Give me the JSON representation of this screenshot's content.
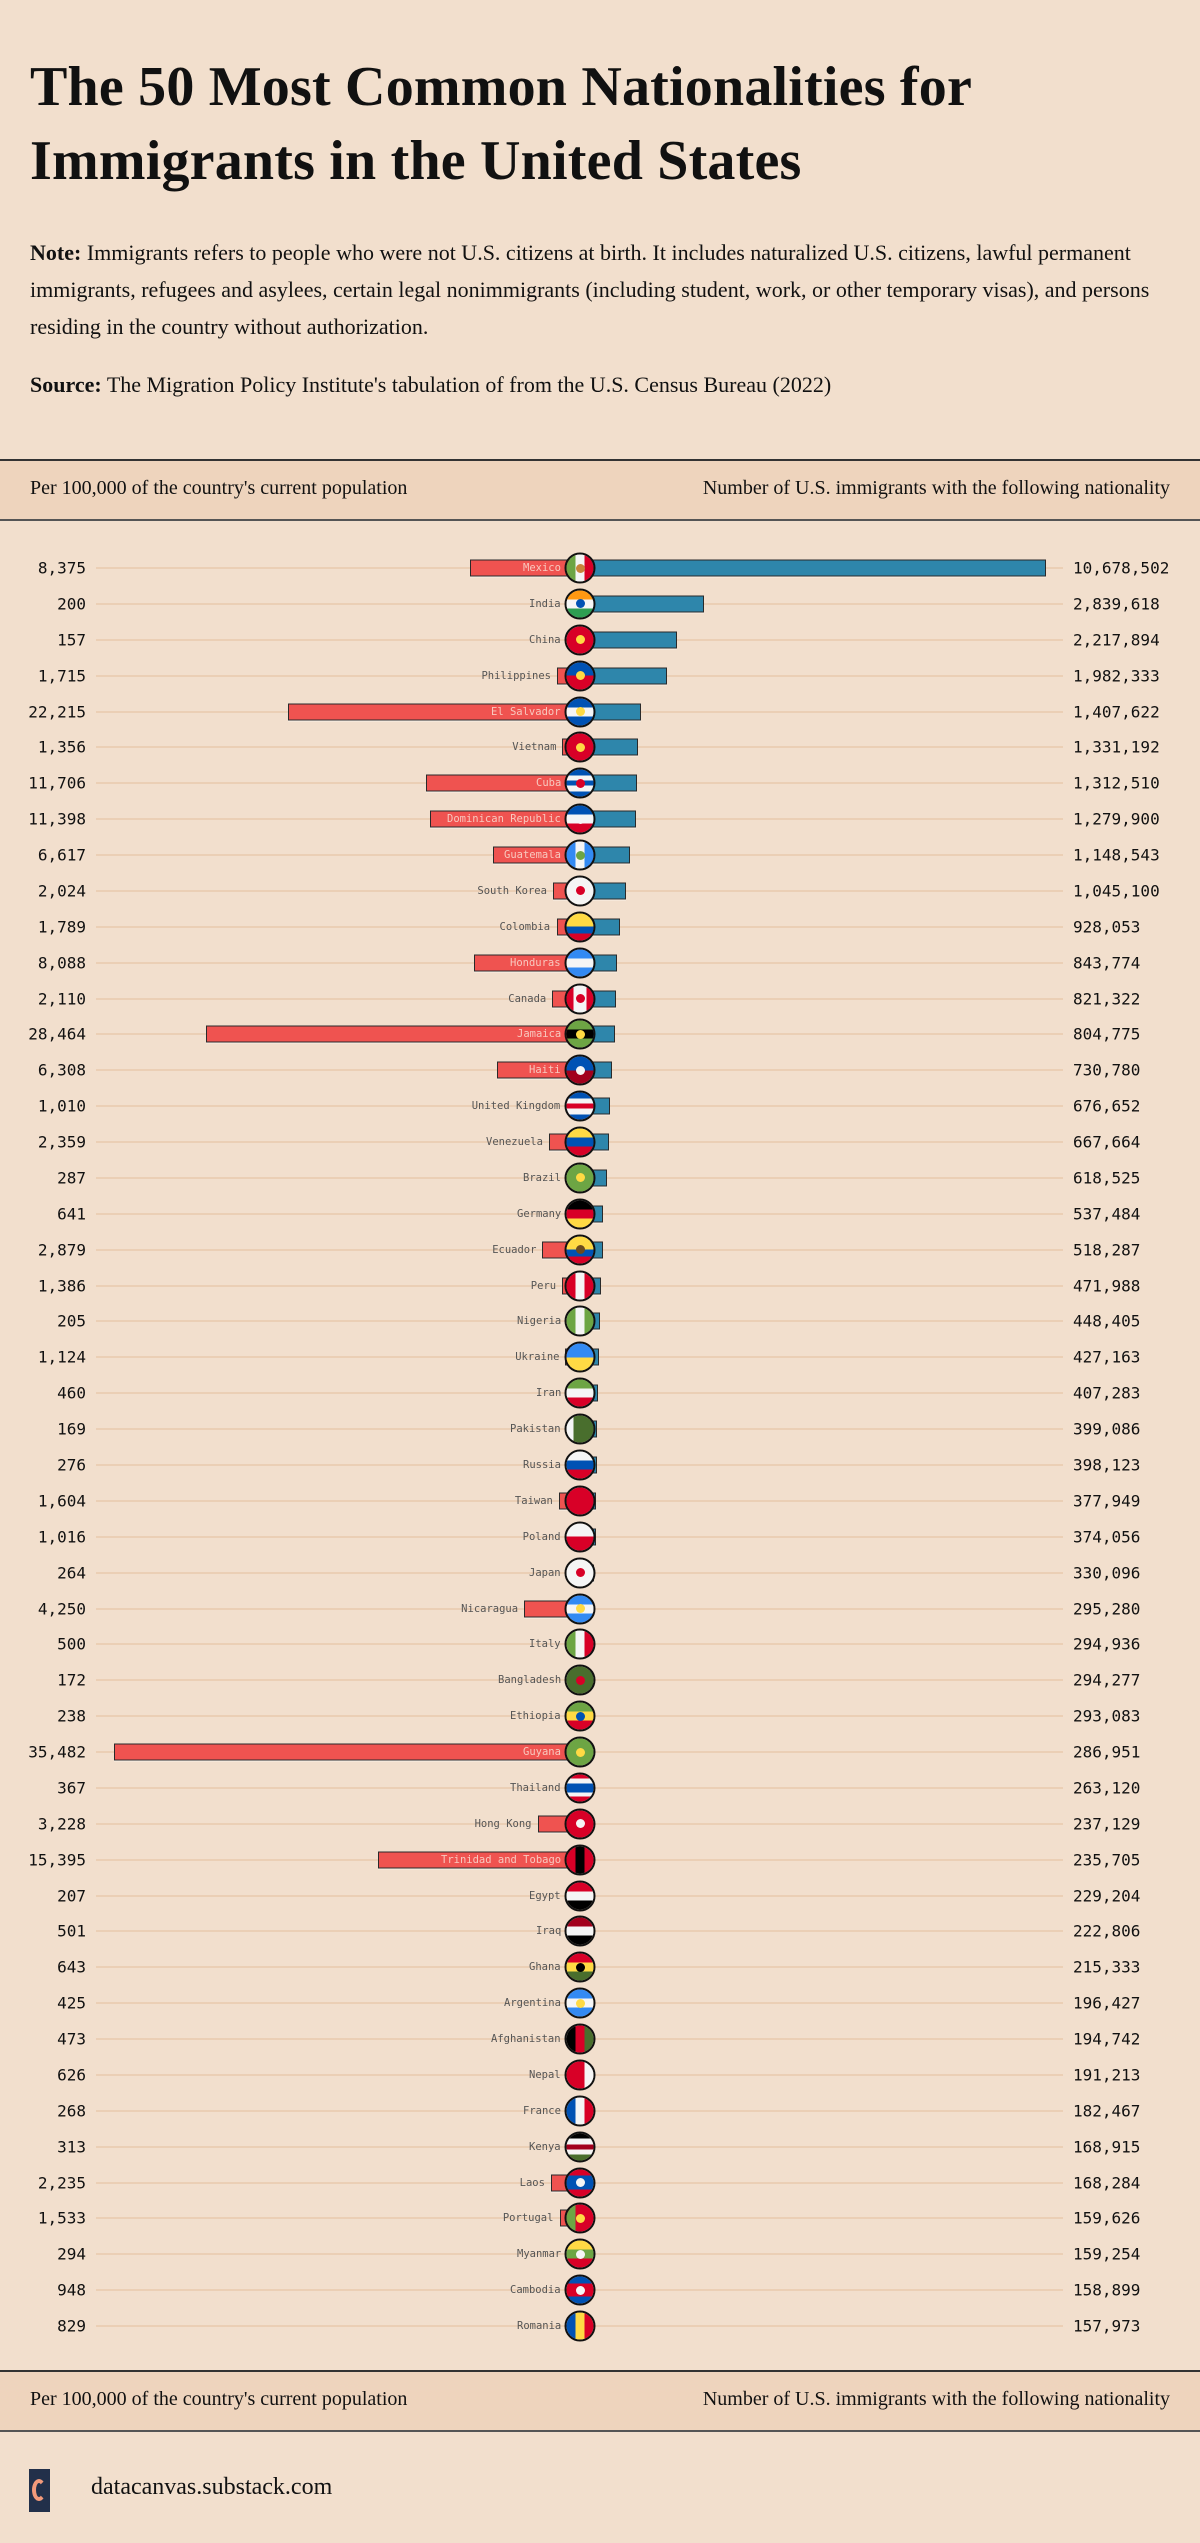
{
  "header": {
    "title_line1": "The 50 Most Common Nationalities for",
    "title_line2": "Immigrants in the United States",
    "note_label": "Note:",
    "note_text": "Immigrants refers to people who were not U.S. citizens at birth. It includes naturalized U.S. citizens, lawful permanent immigrants, refugees and asylees, certain legal nonimmigrants (including student, work, or other temporary visas), and persons residing in the country without authorization.",
    "source_label": "Source:",
    "source_text": "The Migration Policy Institute's tabulation of  from the U.S. Census Bureau (2022)"
  },
  "columns": {
    "left": "Per 100,000 of the country's current population",
    "right": "Number of U.S. immigrants with the following nationality"
  },
  "footer": {
    "site": "datacanvas.substack.com"
  },
  "colors": {
    "per_capita_bar": "#ef5350",
    "immigrants_bar": "#2e86ab",
    "background": "#f2dfcd"
  },
  "chart_data": {
    "type": "bar",
    "orientation": "horizontal diverging",
    "left_series": "Per 100,000 of the country's current population",
    "right_series": "Number of U.S. immigrants with the following nationality",
    "rows": [
      {
        "country": "Mexico",
        "per100k": "8,375",
        "immigrants": "10,678,502",
        "flag": [
          "v",
          "#6da544",
          "#f5f5f5",
          "#d80027"
        ],
        "dot": "#c8843a"
      },
      {
        "country": "India",
        "per100k": "200",
        "immigrants": "2,839,618",
        "flag": [
          "h",
          "#ff9811",
          "#f5f5f5",
          "#2e9e52"
        ],
        "dot": "#0052b4"
      },
      {
        "country": "China",
        "per100k": "157",
        "immigrants": "2,217,894",
        "flag": [
          "h",
          "#d80027"
        ],
        "dot": "#ffda44"
      },
      {
        "country": "Philippines",
        "per100k": "1,715",
        "immigrants": "1,982,333",
        "flag": [
          "h",
          "#0052b4",
          "#d80027"
        ],
        "dot": "#ffda44"
      },
      {
        "country": "El Salvador",
        "per100k": "22,215",
        "immigrants": "1,407,622",
        "flag": [
          "h",
          "#0052b4",
          "#f5f5f5",
          "#0052b4"
        ],
        "dot": "#ffda44"
      },
      {
        "country": "Vietnam",
        "per100k": "1,356",
        "immigrants": "1,331,192",
        "flag": [
          "h",
          "#d80027"
        ],
        "dot": "#ffda44"
      },
      {
        "country": "Cuba",
        "per100k": "11,706",
        "immigrants": "1,312,510",
        "flag": [
          "h",
          "#0052b4",
          "#f5f5f5",
          "#0052b4",
          "#f5f5f5",
          "#0052b4"
        ],
        "dot": "#d80027"
      },
      {
        "country": "Dominican Republic",
        "per100k": "11,398",
        "immigrants": "1,279,900",
        "flag": [
          "h",
          "#0052b4",
          "#f5f5f5",
          "#d80027"
        ],
        "dot": "#f5f5f5"
      },
      {
        "country": "Guatemala",
        "per100k": "6,617",
        "immigrants": "1,148,543",
        "flag": [
          "v",
          "#338af3",
          "#f5f5f5",
          "#338af3"
        ],
        "dot": "#6da544"
      },
      {
        "country": "South Korea",
        "per100k": "2,024",
        "immigrants": "1,045,100",
        "flag": [
          "h",
          "#f5f5f5"
        ],
        "dot": "#d80027"
      },
      {
        "country": "Colombia",
        "per100k": "1,789",
        "immigrants": "928,053",
        "flag": [
          "h",
          "#ffda44",
          "#ffda44",
          "#0052b4",
          "#d80027"
        ]
      },
      {
        "country": "Honduras",
        "per100k": "8,088",
        "immigrants": "843,774",
        "flag": [
          "h",
          "#338af3",
          "#f5f5f5",
          "#338af3"
        ]
      },
      {
        "country": "Canada",
        "per100k": "2,110",
        "immigrants": "821,322",
        "flag": [
          "v",
          "#d80027",
          "#f5f5f5",
          "#f5f5f5",
          "#d80027"
        ],
        "dot": "#d80027"
      },
      {
        "country": "Jamaica",
        "per100k": "28,464",
        "immigrants": "804,775",
        "flag": [
          "h",
          "#6da544",
          "#000000",
          "#6da544"
        ],
        "dot": "#ffda44"
      },
      {
        "country": "Haiti",
        "per100k": "6,308",
        "immigrants": "730,780",
        "flag": [
          "h",
          "#0052b4",
          "#a2001d"
        ],
        "dot": "#f5f5f5"
      },
      {
        "country": "United Kingdom",
        "per100k": "1,010",
        "immigrants": "676,652",
        "flag": [
          "h",
          "#0052b4",
          "#f5f5f5",
          "#d80027",
          "#f5f5f5",
          "#0052b4"
        ]
      },
      {
        "country": "Venezuela",
        "per100k": "2,359",
        "immigrants": "667,664",
        "flag": [
          "h",
          "#ffda44",
          "#0052b4",
          "#d80027"
        ]
      },
      {
        "country": "Brazil",
        "per100k": "287",
        "immigrants": "618,525",
        "flag": [
          "h",
          "#6da544"
        ],
        "dot": "#ffda44"
      },
      {
        "country": "Germany",
        "per100k": "641",
        "immigrants": "537,484",
        "flag": [
          "h",
          "#000000",
          "#d80027",
          "#ffda44"
        ]
      },
      {
        "country": "Ecuador",
        "per100k": "2,879",
        "immigrants": "518,287",
        "flag": [
          "h",
          "#ffda44",
          "#ffda44",
          "#0052b4",
          "#d80027"
        ],
        "dot": "#6b4a1f"
      },
      {
        "country": "Peru",
        "per100k": "1,386",
        "immigrants": "471,988",
        "flag": [
          "v",
          "#d80027",
          "#f5f5f5",
          "#d80027"
        ]
      },
      {
        "country": "Nigeria",
        "per100k": "205",
        "immigrants": "448,405",
        "flag": [
          "v",
          "#6da544",
          "#f5f5f5",
          "#6da544"
        ]
      },
      {
        "country": "Ukraine",
        "per100k": "1,124",
        "immigrants": "427,163",
        "flag": [
          "h",
          "#338af3",
          "#ffda44"
        ]
      },
      {
        "country": "Iran",
        "per100k": "460",
        "immigrants": "407,283",
        "flag": [
          "h",
          "#6da544",
          "#f5f5f5",
          "#d80027"
        ]
      },
      {
        "country": "Pakistan",
        "per100k": "169",
        "immigrants": "399,086",
        "flag": [
          "v",
          "#f5f5f5",
          "#496e2d",
          "#496e2d",
          "#496e2d"
        ]
      },
      {
        "country": "Russia",
        "per100k": "276",
        "immigrants": "398,123",
        "flag": [
          "h",
          "#f5f5f5",
          "#0052b4",
          "#d80027"
        ]
      },
      {
        "country": "Taiwan",
        "per100k": "1,604",
        "immigrants": "377,949",
        "flag": [
          "h",
          "#d80027"
        ]
      },
      {
        "country": "Poland",
        "per100k": "1,016",
        "immigrants": "374,056",
        "flag": [
          "h",
          "#f5f5f5",
          "#d80027"
        ]
      },
      {
        "country": "Japan",
        "per100k": "264",
        "immigrants": "330,096",
        "flag": [
          "h",
          "#f5f5f5"
        ],
        "dot": "#d80027"
      },
      {
        "country": "Nicaragua",
        "per100k": "4,250",
        "immigrants": "295,280",
        "flag": [
          "h",
          "#338af3",
          "#f5f5f5",
          "#338af3"
        ],
        "dot": "#ffda44"
      },
      {
        "country": "Italy",
        "per100k": "500",
        "immigrants": "294,936",
        "flag": [
          "v",
          "#6da544",
          "#f5f5f5",
          "#d80027"
        ]
      },
      {
        "country": "Bangladesh",
        "per100k": "172",
        "immigrants": "294,277",
        "flag": [
          "h",
          "#496e2d"
        ],
        "dot": "#d80027"
      },
      {
        "country": "Ethiopia",
        "per100k": "238",
        "immigrants": "293,083",
        "flag": [
          "h",
          "#6da544",
          "#ffda44",
          "#d80027"
        ],
        "dot": "#0052b4"
      },
      {
        "country": "Guyana",
        "per100k": "35,482",
        "immigrants": "286,951",
        "flag": [
          "h",
          "#6da544"
        ],
        "dot": "#ffda44"
      },
      {
        "country": "Thailand",
        "per100k": "367",
        "immigrants": "263,120",
        "flag": [
          "h",
          "#d80027",
          "#f5f5f5",
          "#0052b4",
          "#0052b4",
          "#f5f5f5",
          "#d80027"
        ]
      },
      {
        "country": "Hong Kong",
        "per100k": "3,228",
        "immigrants": "237,129",
        "flag": [
          "h",
          "#d80027"
        ],
        "dot": "#f5f5f5"
      },
      {
        "country": "Trinidad and Tobago",
        "per100k": "15,395",
        "immigrants": "235,705",
        "flag": [
          "v",
          "#d80027",
          "#000000",
          "#d80027"
        ]
      },
      {
        "country": "Egypt",
        "per100k": "207",
        "immigrants": "229,204",
        "flag": [
          "h",
          "#d80027",
          "#f5f5f5",
          "#000000"
        ]
      },
      {
        "country": "Iraq",
        "per100k": "501",
        "immigrants": "222,806",
        "flag": [
          "h",
          "#a2001d",
          "#f5f5f5",
          "#000000"
        ]
      },
      {
        "country": "Ghana",
        "per100k": "643",
        "immigrants": "215,333",
        "flag": [
          "h",
          "#d80027",
          "#ffda44",
          "#496e2d"
        ],
        "dot": "#000000"
      },
      {
        "country": "Argentina",
        "per100k": "425",
        "immigrants": "196,427",
        "flag": [
          "h",
          "#338af3",
          "#f5f5f5",
          "#338af3"
        ],
        "dot": "#ffda44"
      },
      {
        "country": "Afghanistan",
        "per100k": "473",
        "immigrants": "194,742",
        "flag": [
          "v",
          "#000000",
          "#d80027",
          "#496e2d"
        ]
      },
      {
        "country": "Nepal",
        "per100k": "626",
        "immigrants": "191,213",
        "flag": [
          "v",
          "#d80027",
          "#d80027",
          "#f5f5f5"
        ]
      },
      {
        "country": "France",
        "per100k": "268",
        "immigrants": "182,467",
        "flag": [
          "v",
          "#0052b4",
          "#f5f5f5",
          "#d80027"
        ]
      },
      {
        "country": "Kenya",
        "per100k": "313",
        "immigrants": "168,915",
        "flag": [
          "h",
          "#000000",
          "#f5f5f5",
          "#a2001d",
          "#f5f5f5",
          "#496e2d"
        ]
      },
      {
        "country": "Laos",
        "per100k": "2,235",
        "immigrants": "168,284",
        "flag": [
          "h",
          "#d80027",
          "#0052b4",
          "#0052b4",
          "#d80027"
        ],
        "dot": "#f5f5f5"
      },
      {
        "country": "Portugal",
        "per100k": "1,533",
        "immigrants": "159,626",
        "flag": [
          "v",
          "#6da544",
          "#d80027",
          "#d80027"
        ],
        "dot": "#ffda44"
      },
      {
        "country": "Myanmar",
        "per100k": "294",
        "immigrants": "159,254",
        "flag": [
          "h",
          "#ffda44",
          "#6da544",
          "#d80027"
        ],
        "dot": "#f5f5f5"
      },
      {
        "country": "Cambodia",
        "per100k": "948",
        "immigrants": "158,899",
        "flag": [
          "h",
          "#0052b4",
          "#d80027",
          "#d80027",
          "#0052b4"
        ],
        "dot": "#f5f5f5"
      },
      {
        "country": "Romania",
        "per100k": "829",
        "immigrants": "157,973",
        "flag": [
          "v",
          "#0052b4",
          "#ffda44",
          "#d80027"
        ]
      }
    ]
  }
}
